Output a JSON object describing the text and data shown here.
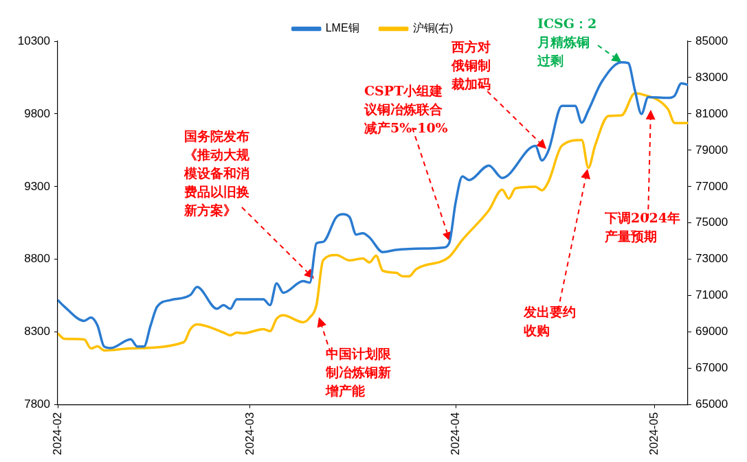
{
  "chart_data": {
    "type": "line",
    "legend": "top",
    "marker": "none",
    "line_style": "solid",
    "xlim": [
      "2024-02-01",
      "2024-05-06"
    ],
    "xticks": [
      {
        "value": "2024-02-01",
        "label": "2024-02"
      },
      {
        "value": "2024-03-01",
        "label": "2024-03"
      },
      {
        "value": "2024-04-01",
        "label": "2024-04"
      },
      {
        "value": "2024-05-01",
        "label": "2024-05"
      }
    ],
    "ylim": [
      7800,
      10300
    ],
    "yticks": [
      7800,
      8300,
      8800,
      9300,
      9800,
      10300
    ],
    "y2lim": [
      65000,
      85000
    ],
    "y2ticks": [
      65000,
      67000,
      69000,
      71000,
      73000,
      75000,
      77000,
      79000,
      81000,
      83000,
      85000
    ],
    "series": [
      {
        "name": "LME铜",
        "color": "#2a7bd0",
        "x": [
          "2024-02-01",
          "2024-02-02",
          "2024-02-05",
          "2024-02-06",
          "2024-02-07",
          "2024-02-08",
          "2024-02-09",
          "2024-02-12",
          "2024-02-13",
          "2024-02-14",
          "2024-02-15",
          "2024-02-16",
          "2024-02-18",
          "2024-02-21",
          "2024-02-22",
          "2024-02-25",
          "2024-02-26",
          "2024-02-27",
          "2024-02-28",
          "2024-03-03",
          "2024-03-04",
          "2024-03-05",
          "2024-03-06",
          "2024-03-09",
          "2024-03-10",
          "2024-03-11",
          "2024-03-12",
          "2024-03-14",
          "2024-03-15",
          "2024-03-16",
          "2024-03-17",
          "2024-03-18",
          "2024-03-19",
          "2024-03-21",
          "2024-03-23",
          "2024-03-28",
          "2024-03-30",
          "2024-03-31",
          "2024-04-01",
          "2024-04-02",
          "2024-04-03",
          "2024-04-06",
          "2024-04-08",
          "2024-04-13",
          "2024-04-14",
          "2024-04-15",
          "2024-04-17",
          "2024-04-19",
          "2024-04-20",
          "2024-04-21",
          "2024-04-23",
          "2024-04-26",
          "2024-04-27",
          "2024-04-28",
          "2024-04-29",
          "2024-04-30",
          "2024-05-03",
          "2024-05-04",
          "2024-05-05",
          "2024-05-06"
        ],
        "values": [
          8520,
          8475,
          8377,
          8400,
          8345,
          8200,
          8190,
          8250,
          8200,
          8200,
          8345,
          8475,
          8520,
          8555,
          8610,
          8460,
          8485,
          8460,
          8525,
          8525,
          8485,
          8635,
          8570,
          8650,
          8640,
          8910,
          8920,
          9090,
          9110,
          9090,
          8970,
          8980,
          8950,
          8850,
          8865,
          8875,
          8880,
          8910,
          9195,
          9370,
          9345,
          9445,
          9360,
          9580,
          9480,
          9550,
          9855,
          9855,
          9740,
          9825,
          10020,
          10155,
          10150,
          9965,
          9800,
          9915,
          9910,
          9925,
          10010,
          10000
        ]
      },
      {
        "name": "沪铜(右)",
        "color": "#ffc000",
        "axis": "y2",
        "x": [
          "2024-02-01",
          "2024-02-02",
          "2024-02-05",
          "2024-02-06",
          "2024-02-07",
          "2024-02-08",
          "2024-02-12",
          "2024-02-20",
          "2024-02-21",
          "2024-02-22",
          "2024-02-26",
          "2024-02-27",
          "2024-02-28",
          "2024-02-29",
          "2024-03-03",
          "2024-03-04",
          "2024-03-05",
          "2024-03-06",
          "2024-03-09",
          "2024-03-10",
          "2024-03-11",
          "2024-03-12",
          "2024-03-14",
          "2024-03-16",
          "2024-03-18",
          "2024-03-19",
          "2024-03-20",
          "2024-03-21",
          "2024-03-23",
          "2024-03-24",
          "2024-03-25",
          "2024-03-26",
          "2024-03-31",
          "2024-04-02",
          "2024-04-06",
          "2024-04-08",
          "2024-04-09",
          "2024-04-10",
          "2024-04-13",
          "2024-04-14",
          "2024-04-15",
          "2024-04-17",
          "2024-04-20",
          "2024-04-21",
          "2024-04-22",
          "2024-04-24",
          "2024-04-26",
          "2024-04-28",
          "2024-04-29",
          "2024-05-03",
          "2024-05-04",
          "2024-05-06"
        ],
        "values": [
          68930,
          68630,
          68590,
          68100,
          68210,
          67990,
          68100,
          68440,
          69160,
          69420,
          68970,
          68820,
          68970,
          68930,
          69160,
          69050,
          69730,
          69920,
          69540,
          69800,
          70480,
          72940,
          73240,
          72940,
          73050,
          72830,
          73200,
          72370,
          72260,
          72070,
          72070,
          72450,
          73130,
          74070,
          75700,
          76830,
          76340,
          76910,
          76990,
          76800,
          77290,
          79250,
          79560,
          78040,
          79250,
          80880,
          80920,
          82130,
          82090,
          81260,
          80500,
          80500
        ]
      }
    ],
    "annotations": [
      "国务院发布《推动大规模设备和消费品以旧换新方案》",
      "中国计划限制冶炼铜新增产能",
      "CSPT小组建议铜冶炼联合减产5%-10%",
      "西方对俄铜制裁加码",
      {
        "text": "ICSG：2月精炼铜过剩",
        "x": "2024-04-26",
        "y": 10155
      },
      "发出要约收购",
      "下调2024年产量预期"
    ]
  }
}
